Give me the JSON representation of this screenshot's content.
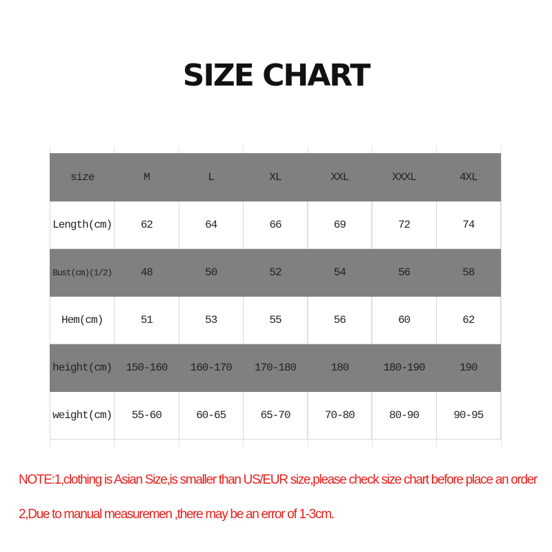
{
  "title": "SIZE CHART",
  "table": {
    "header": [
      "size",
      "M",
      "L",
      "XL",
      "XXL",
      "XXXL",
      "4XL"
    ],
    "rows": [
      [
        "Length(cm)",
        "62",
        "64",
        "66",
        "69",
        "72",
        "74"
      ],
      [
        "Bust(cm)(1/2)",
        "48",
        "50",
        "52",
        "54",
        "56",
        "58"
      ],
      [
        "Hem(cm)",
        "51",
        "53",
        "55",
        "56",
        "60",
        "62"
      ],
      [
        "height(cm)",
        "150-160",
        "160-170",
        "170-180",
        "180",
        "180-190",
        "190"
      ],
      [
        "weight(cm)",
        "55-60",
        "60-65",
        "65-70",
        "70-80",
        "80-90",
        "90-95"
      ]
    ]
  },
  "note": {
    "line1": "NOTE:1,clothing is Asian Size,is smaller than US/EUR size,please check size chart before place an order",
    "line2": "2,Due to manual measuremen ,there may be an error of 1-3cm."
  },
  "colors": {
    "stripe": "#808080",
    "note": "#e8201c"
  }
}
